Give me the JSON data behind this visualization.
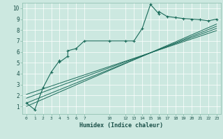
{
  "title": "",
  "xlabel": "Humidex (Indice chaleur)",
  "bg_color": "#cce8e0",
  "line_color": "#1a6b5a",
  "xlim": [
    -0.5,
    23.5
  ],
  "ylim": [
    0.3,
    10.5
  ],
  "xtick_positions": [
    0,
    1,
    2,
    3,
    4,
    5,
    6,
    7,
    10,
    12,
    13,
    14,
    15,
    16,
    17,
    18,
    19,
    20,
    21,
    22,
    23
  ],
  "xtick_labels": [
    "0",
    "1",
    "2",
    "3",
    "4",
    "5",
    "6",
    "7",
    "10",
    "12",
    "13",
    "14",
    "15",
    "16",
    "17",
    "18",
    "19",
    "20",
    "21",
    "22",
    "23"
  ],
  "yticks": [
    1,
    2,
    3,
    4,
    5,
    6,
    7,
    8,
    9,
    10
  ],
  "series": [
    [
      0,
      1.3
    ],
    [
      1,
      0.7
    ],
    [
      2,
      2.7
    ],
    [
      3,
      4.15
    ],
    [
      4,
      5.2
    ],
    [
      4,
      5.05
    ],
    [
      5,
      5.6
    ],
    [
      5,
      6.1
    ],
    [
      6,
      6.3
    ],
    [
      7,
      7.0
    ],
    [
      10,
      7.0
    ],
    [
      12,
      7.0
    ],
    [
      13,
      7.0
    ],
    [
      14,
      8.15
    ],
    [
      15,
      10.35
    ],
    [
      16,
      9.5
    ],
    [
      16,
      9.7
    ],
    [
      17,
      9.25
    ],
    [
      18,
      9.15
    ],
    [
      19,
      9.05
    ],
    [
      20,
      9.0
    ],
    [
      21,
      8.95
    ],
    [
      22,
      8.85
    ],
    [
      23,
      9.0
    ]
  ],
  "straight_lines": [
    [
      [
        0,
        1.0
      ],
      [
        23,
        8.55
      ]
    ],
    [
      [
        0,
        1.3
      ],
      [
        23,
        8.35
      ]
    ],
    [
      [
        0,
        1.75
      ],
      [
        23,
        8.15
      ]
    ],
    [
      [
        0,
        2.1
      ],
      [
        23,
        7.95
      ]
    ]
  ]
}
